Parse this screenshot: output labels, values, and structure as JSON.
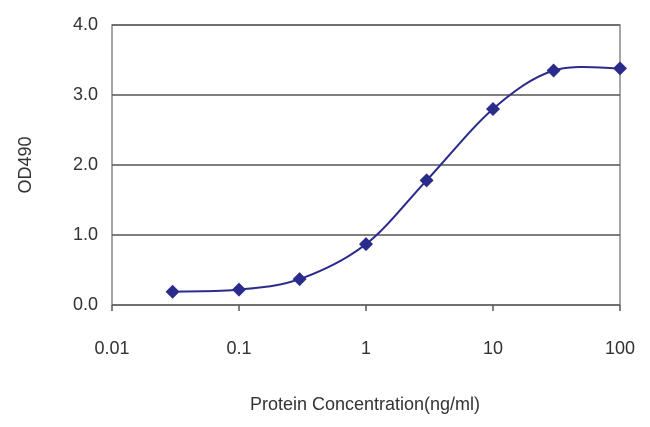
{
  "chart_data": {
    "type": "line",
    "x_label": "Protein Concentration(ng/ml)",
    "y_label": "OD490",
    "x": [
      0.03,
      0.1,
      0.3,
      1,
      3,
      10,
      30,
      100
    ],
    "values": [
      0.19,
      0.22,
      0.37,
      0.87,
      1.78,
      2.8,
      3.35,
      3.38
    ],
    "color": "#2b2b8c",
    "x_log": true,
    "xlim": [
      0.01,
      100
    ],
    "xticks": [
      0.01,
      0.1,
      1,
      10,
      100
    ],
    "ylim": [
      0,
      4
    ],
    "yticks": [
      {
        "value": 0,
        "label": "0.0"
      },
      {
        "value": 1,
        "label": "1.0"
      },
      {
        "value": 2,
        "label": "2.0"
      },
      {
        "value": 3,
        "label": "3.0"
      },
      {
        "value": 4,
        "label": "4.0"
      }
    ],
    "grid": true
  }
}
